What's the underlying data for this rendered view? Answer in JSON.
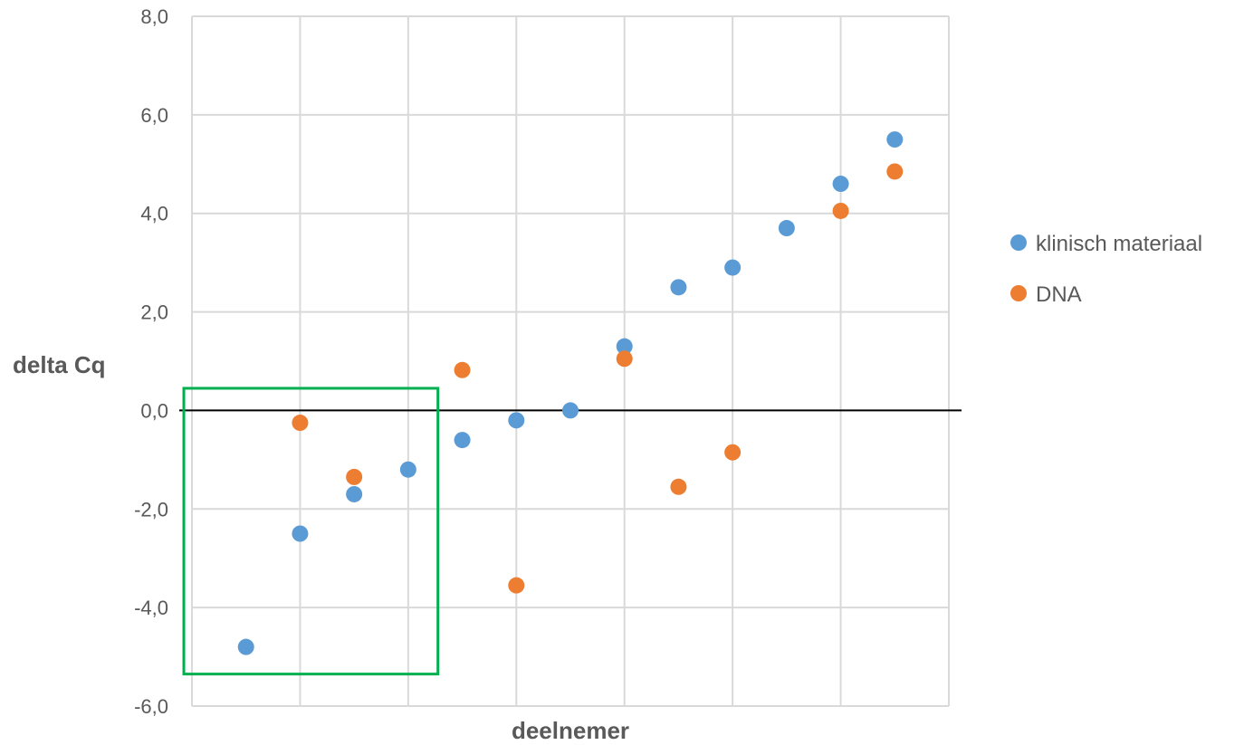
{
  "chart_data": {
    "type": "scatter",
    "xlabel": "deelnemer",
    "ylabel": "delta Cq",
    "ylim": [
      -6,
      8
    ],
    "ytick_step": 2,
    "y_ticks": [
      "-6,0",
      "-4,0",
      "-2,0",
      "0,0",
      "2,0",
      "4,0",
      "6,0",
      "8,0"
    ],
    "xlim": [
      0,
      14
    ],
    "x_gridlines": [
      2,
      4,
      6,
      8,
      10,
      12,
      14
    ],
    "grid": true,
    "legend_position": "right",
    "series": [
      {
        "name": "klinisch materiaal",
        "color": "#5b9bd5",
        "points": [
          {
            "x": 1,
            "y": -4.8
          },
          {
            "x": 2,
            "y": -2.5
          },
          {
            "x": 3,
            "y": -1.7
          },
          {
            "x": 4,
            "y": -1.2
          },
          {
            "x": 5,
            "y": -0.6
          },
          {
            "x": 6,
            "y": -0.2
          },
          {
            "x": 7,
            "y": 0.0
          },
          {
            "x": 8,
            "y": 1.3
          },
          {
            "x": 9,
            "y": 2.5
          },
          {
            "x": 10,
            "y": 2.9
          },
          {
            "x": 11,
            "y": 3.7
          },
          {
            "x": 12,
            "y": 4.6
          },
          {
            "x": 13,
            "y": 5.5
          }
        ]
      },
      {
        "name": "DNA",
        "color": "#ed7d31",
        "points": [
          {
            "x": 2,
            "y": -0.25
          },
          {
            "x": 3,
            "y": -1.35
          },
          {
            "x": 5,
            "y": 0.82
          },
          {
            "x": 6,
            "y": -3.55
          },
          {
            "x": 8,
            "y": 1.05
          },
          {
            "x": 9,
            "y": -1.55
          },
          {
            "x": 10,
            "y": -0.85
          },
          {
            "x": 12,
            "y": 4.05
          },
          {
            "x": 13,
            "y": 4.85
          }
        ]
      }
    ],
    "highlight_box": {
      "color": "#00b050",
      "x_range": [
        -0.15,
        4.55
      ],
      "y_range": [
        -5.35,
        0.45
      ]
    }
  }
}
